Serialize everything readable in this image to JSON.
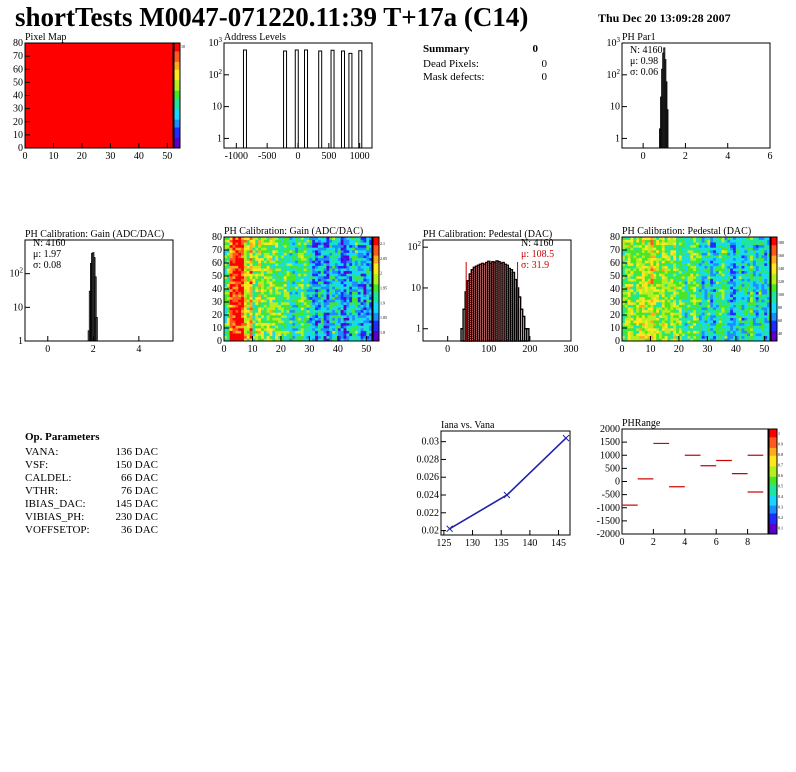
{
  "header": {
    "title": "shortTests M0047-071220.11:39 T+17a (C14)",
    "date": "Thu Dec 20 13:09:28 2007"
  },
  "summary": {
    "title": "Summary",
    "title_value": "0",
    "rows": [
      {
        "label": "Dead Pixels:",
        "value": "0"
      },
      {
        "label": "Mask defects:",
        "value": "0"
      }
    ]
  },
  "op_params": {
    "title": "Op. Parameters",
    "rows": [
      {
        "label": "VANA:",
        "value": "136 DAC"
      },
      {
        "label": "VSF:",
        "value": "150 DAC"
      },
      {
        "label": "CALDEL:",
        "value": "66 DAC"
      },
      {
        "label": "VTHR:",
        "value": "76 DAC"
      },
      {
        "label": "IBIAS_DAC:",
        "value": "145 DAC"
      },
      {
        "label": "VIBIAS_PH:",
        "value": "230 DAC"
      },
      {
        "label": "VOFFSETOP:",
        "value": "36 DAC"
      }
    ]
  },
  "colors": {
    "palette": [
      "#5a00c8",
      "#1e2cff",
      "#1c8cff",
      "#16d8ff",
      "#1ee6a0",
      "#46e628",
      "#b4f01e",
      "#ffe61e",
      "#ffaa1e",
      "#ff5a1e",
      "#ff0000"
    ],
    "curve": "#2222aa",
    "fit": "#cc0000"
  },
  "chart_data": [
    {
      "id": "pixel-map",
      "type": "heatmap",
      "title": "Pixel Map",
      "xlim": [
        0,
        52
      ],
      "ylim": [
        0,
        80
      ],
      "xticks": [
        "0",
        "10",
        "20",
        "30",
        "40",
        "50"
      ],
      "yticks": [
        "0",
        "10",
        "20",
        "30",
        "40",
        "50",
        "60",
        "70",
        "80"
      ],
      "zticks": [
        "10"
      ],
      "z_uniform": 10
    },
    {
      "id": "address-levels",
      "type": "bar",
      "title": "Address Levels",
      "log_y": true,
      "xlim": [
        -1200,
        1200
      ],
      "ylim": [
        0.5,
        1000
      ],
      "xticks": [
        "-1000",
        "-500",
        "0",
        "500",
        "1000"
      ],
      "yticks": [
        "1",
        "10",
        "10^2",
        "10^3"
      ],
      "x": [
        -860,
        -210,
        -20,
        130,
        360,
        560,
        730,
        850,
        1010
      ],
      "values": [
        600,
        560,
        600,
        600,
        560,
        590,
        560,
        470,
        570
      ]
    },
    {
      "id": "ph-par1",
      "type": "bar",
      "title": "PH Par1",
      "log_y": true,
      "xlim": [
        -1,
        6
      ],
      "ylim": [
        0.5,
        1000
      ],
      "xticks": [
        "0",
        "2",
        "4",
        "6"
      ],
      "yticks": [
        "1",
        "10",
        "10^2",
        "10^3"
      ],
      "stats": {
        "N": "4160",
        "mu": "0.98",
        "sigma": "0.06"
      },
      "x": [
        0.8,
        0.85,
        0.9,
        0.95,
        1.0,
        1.05,
        1.1,
        1.15
      ],
      "values": [
        2,
        20,
        150,
        480,
        700,
        300,
        60,
        8
      ]
    },
    {
      "id": "gain-1d",
      "type": "bar",
      "title": "PH Calibration: Gain (ADC/DAC)",
      "log_y": true,
      "xlim": [
        -1,
        5.5
      ],
      "ylim": [
        1,
        1000
      ],
      "xticks": [
        "0",
        "2",
        "4"
      ],
      "yticks": [
        "1",
        "10",
        "10^2"
      ],
      "stats": {
        "N": "4160",
        "mu": "1.97",
        "sigma": "0.08"
      },
      "x": [
        1.8,
        1.85,
        1.9,
        1.95,
        2.0,
        2.05,
        2.1,
        2.15
      ],
      "values": [
        2,
        30,
        200,
        400,
        420,
        300,
        80,
        5
      ]
    },
    {
      "id": "gain-2d",
      "type": "heatmap",
      "title": "PH Calibration: Gain (ADC/DAC)",
      "xlim": [
        0,
        52
      ],
      "ylim": [
        0,
        80
      ],
      "xticks": [
        "0",
        "10",
        "20",
        "30",
        "40",
        "50"
      ],
      "yticks": [
        "0",
        "10",
        "20",
        "30",
        "40",
        "50",
        "60",
        "70",
        "80"
      ],
      "zticks": [
        "1.8",
        "1.85",
        "1.9",
        "1.95",
        "2",
        "2.05",
        "2.1"
      ],
      "column_profile": [
        0.45,
        0.55,
        0.85,
        0.9,
        0.92,
        0.95,
        0.95,
        0.7,
        0.55,
        0.8,
        0.5,
        0.55,
        0.6,
        0.55,
        0.5,
        0.55,
        0.6,
        0.5,
        0.55,
        0.5,
        0.45,
        0.5,
        0.45,
        0.4,
        0.35,
        0.4,
        0.45,
        0.5,
        0.45,
        0.4,
        0.35,
        0.25,
        0.2,
        0.3,
        0.35,
        0.25,
        0.2,
        0.35,
        0.4,
        0.35,
        0.3,
        0.2,
        0.15,
        0.25,
        0.3,
        0.35,
        0.4,
        0.3,
        0.25,
        0.2,
        0.3,
        0.25
      ]
    },
    {
      "id": "pedestal-1d",
      "type": "bar",
      "title": "PH Calibration: Pedestal (DAC)",
      "log_y": true,
      "xlim": [
        -60,
        300
      ],
      "ylim": [
        0.5,
        150
      ],
      "xticks": [
        "0",
        "100",
        "200",
        "300"
      ],
      "yticks": [
        "1",
        "10",
        "10^2"
      ],
      "stats": {
        "N": "4160",
        "mu": "108.5",
        "sigma": "31.9"
      },
      "x": [
        35,
        40,
        45,
        50,
        55,
        60,
        65,
        70,
        75,
        80,
        85,
        90,
        95,
        100,
        105,
        110,
        115,
        120,
        125,
        130,
        135,
        140,
        145,
        150,
        155,
        160,
        165,
        170,
        175,
        180,
        185,
        190,
        195
      ],
      "values": [
        1,
        3,
        8,
        15,
        22,
        28,
        32,
        34,
        36,
        38,
        40,
        38,
        42,
        45,
        40,
        44,
        42,
        46,
        44,
        40,
        42,
        38,
        36,
        30,
        28,
        24,
        16,
        10,
        6,
        3,
        2,
        1,
        1
      ],
      "fit_range": [
        45,
        170
      ]
    },
    {
      "id": "pedestal-2d",
      "type": "heatmap",
      "title": "PH Calibration: Pedestal (DAC)",
      "xlim": [
        0,
        52
      ],
      "ylim": [
        0,
        80
      ],
      "xticks": [
        "0",
        "10",
        "20",
        "30",
        "40",
        "50"
      ],
      "yticks": [
        "0",
        "10",
        "20",
        "30",
        "40",
        "50",
        "60",
        "70",
        "80"
      ],
      "zticks": [
        "40",
        "60",
        "80",
        "100",
        "120",
        "140",
        "160",
        "180"
      ],
      "column_profile": [
        0.5,
        0.55,
        0.6,
        0.55,
        0.5,
        0.55,
        0.6,
        0.65,
        0.55,
        0.6,
        0.7,
        0.6,
        0.55,
        0.5,
        0.6,
        0.55,
        0.5,
        0.55,
        0.6,
        0.5,
        0.55,
        0.45,
        0.4,
        0.45,
        0.5,
        0.55,
        0.45,
        0.4,
        0.3,
        0.35,
        0.45,
        0.25,
        0.3,
        0.4,
        0.45,
        0.5,
        0.4,
        0.35,
        0.3,
        0.25,
        0.35,
        0.4,
        0.3,
        0.35,
        0.4,
        0.45,
        0.35,
        0.3,
        0.4,
        0.35,
        0.3,
        0.35
      ]
    },
    {
      "id": "iana-vana",
      "type": "line",
      "title": "Iana vs. Vana",
      "xlim": [
        124.5,
        147
      ],
      "ylim": [
        0.0195,
        0.0312
      ],
      "xticks": [
        "125",
        "130",
        "135",
        "140",
        "145"
      ],
      "yticks": [
        "0.02",
        "0.022",
        "0.024",
        "0.026",
        "0.028",
        "0.03"
      ],
      "x": [
        126,
        136,
        146.3
      ],
      "values": [
        0.0202,
        0.024,
        0.0304
      ]
    },
    {
      "id": "ph-range",
      "type": "heatmap",
      "title": "PHRange",
      "xlim": [
        0,
        9.3
      ],
      "ylim": [
        -2000,
        2000
      ],
      "xticks": [
        "0",
        "2",
        "4",
        "6",
        "8"
      ],
      "yticks": [
        "-2000",
        "-1500",
        "-1000",
        "-500",
        "0",
        "500",
        "1000",
        "1500",
        "2000"
      ],
      "zticks": [
        "0.1",
        "0.2",
        "0.3",
        "0.4",
        "0.5",
        "0.6",
        "0.7",
        "0.8",
        "0.9",
        "1"
      ],
      "x": [
        0.5,
        1.5,
        2.5,
        3.5,
        4.5,
        5.5,
        6.5,
        7.5,
        8.5
      ],
      "values": [
        -900,
        100,
        1450,
        -200,
        1000,
        600,
        800,
        300,
        1000
      ],
      "values_b": [
        null,
        null,
        null,
        null,
        null,
        null,
        null,
        null,
        -400
      ]
    }
  ]
}
